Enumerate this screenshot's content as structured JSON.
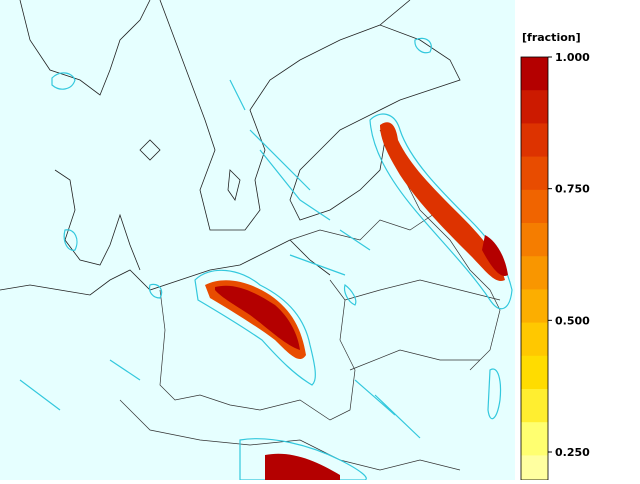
{
  "legend": {
    "title": "[fraction]",
    "ticks": [
      {
        "value": 1,
        "label": "1.000"
      },
      {
        "value": 0.75,
        "label": "0.750"
      },
      {
        "value": 0.5,
        "label": "0.500"
      },
      {
        "value": 0.25,
        "label": "0.250"
      }
    ],
    "colors": [
      "#b40000",
      "#cc1a00",
      "#dd3300",
      "#e84c00",
      "#f06400",
      "#f57d00",
      "#f99600",
      "#fcae00",
      "#ffc800",
      "#ffdc00",
      "#ffee30",
      "#ffff70",
      "#ffffa0"
    ]
  }
}
